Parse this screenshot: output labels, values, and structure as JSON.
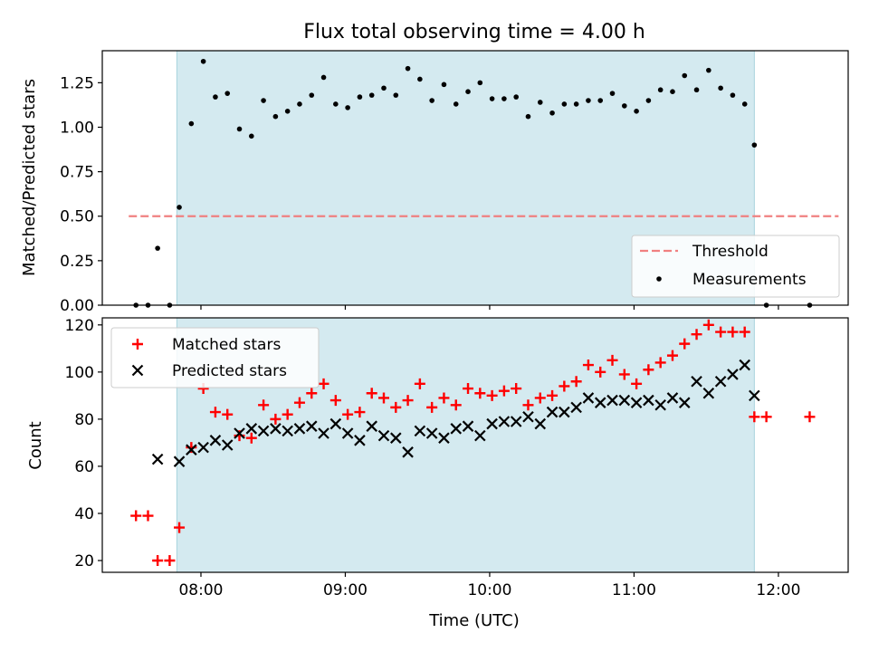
{
  "chart_data": [
    {
      "type": "scatter",
      "title": "Flux total observing time = 4.00 h",
      "ylabel": "Matched/Predicted stars",
      "xlabel": "",
      "xlim": [
        "07:19",
        "12:29"
      ],
      "ylim": [
        0,
        1.43
      ],
      "y_ticks": [
        0.0,
        0.25,
        0.5,
        0.75,
        1.0,
        1.25
      ],
      "y_tick_labels": [
        "0.00",
        "0.25",
        "0.50",
        "0.75",
        "1.00",
        "1.25"
      ],
      "x_ticks": [
        "08:00",
        "09:00",
        "10:00",
        "11:00",
        "12:00"
      ],
      "shaded_interval": [
        "07:50",
        "11:50"
      ],
      "shaded_color": "#d4eaf0",
      "legend": {
        "placement": "lower right",
        "entries": [
          "Threshold",
          "Measurements"
        ]
      },
      "threshold": {
        "name": "Threshold",
        "value": 0.5,
        "x_range": [
          "07:30",
          "12:25"
        ],
        "color": "#f08080",
        "style": "dashed"
      },
      "series": [
        {
          "name": "Measurements",
          "color": "#000000",
          "marker": "dot",
          "points": [
            [
              "07:33",
              0.0
            ],
            [
              "07:38",
              0.0
            ],
            [
              "07:42",
              0.32
            ],
            [
              "07:47",
              0.0
            ],
            [
              "07:51",
              0.55
            ],
            [
              "07:56",
              1.02
            ],
            [
              "08:01",
              1.37
            ],
            [
              "08:06",
              1.17
            ],
            [
              "08:11",
              1.19
            ],
            [
              "08:16",
              0.99
            ],
            [
              "08:21",
              0.95
            ],
            [
              "08:26",
              1.15
            ],
            [
              "08:31",
              1.06
            ],
            [
              "08:36",
              1.09
            ],
            [
              "08:41",
              1.13
            ],
            [
              "08:46",
              1.18
            ],
            [
              "08:51",
              1.28
            ],
            [
              "08:56",
              1.13
            ],
            [
              "09:01",
              1.11
            ],
            [
              "09:06",
              1.17
            ],
            [
              "09:11",
              1.18
            ],
            [
              "09:16",
              1.22
            ],
            [
              "09:21",
              1.18
            ],
            [
              "09:26",
              1.33
            ],
            [
              "09:31",
              1.27
            ],
            [
              "09:36",
              1.15
            ],
            [
              "09:41",
              1.24
            ],
            [
              "09:46",
              1.13
            ],
            [
              "09:51",
              1.2
            ],
            [
              "09:56",
              1.25
            ],
            [
              "10:01",
              1.16
            ],
            [
              "10:06",
              1.16
            ],
            [
              "10:11",
              1.17
            ],
            [
              "10:16",
              1.06
            ],
            [
              "10:21",
              1.14
            ],
            [
              "10:26",
              1.08
            ],
            [
              "10:31",
              1.13
            ],
            [
              "10:36",
              1.13
            ],
            [
              "10:41",
              1.15
            ],
            [
              "10:46",
              1.15
            ],
            [
              "10:51",
              1.19
            ],
            [
              "10:56",
              1.12
            ],
            [
              "11:01",
              1.09
            ],
            [
              "11:06",
              1.15
            ],
            [
              "11:11",
              1.21
            ],
            [
              "11:16",
              1.2
            ],
            [
              "11:21",
              1.29
            ],
            [
              "11:26",
              1.21
            ],
            [
              "11:31",
              1.32
            ],
            [
              "11:36",
              1.22
            ],
            [
              "11:41",
              1.18
            ],
            [
              "11:46",
              1.13
            ],
            [
              "11:50",
              0.9
            ],
            [
              "11:55",
              0.0
            ],
            [
              "12:13",
              0.0
            ]
          ]
        }
      ]
    },
    {
      "type": "scatter",
      "title": "",
      "ylabel": "Count",
      "xlabel": "Time (UTC)",
      "xlim": [
        "07:19",
        "12:29"
      ],
      "ylim": [
        15,
        123
      ],
      "y_ticks": [
        20,
        40,
        60,
        80,
        100,
        120
      ],
      "y_tick_labels": [
        "20",
        "40",
        "60",
        "80",
        "100",
        "120"
      ],
      "x_ticks": [
        "08:00",
        "09:00",
        "10:00",
        "11:00",
        "12:00"
      ],
      "x_tick_labels": [
        "08:00",
        "09:00",
        "10:00",
        "11:00",
        "12:00"
      ],
      "shaded_interval": [
        "07:50",
        "11:50"
      ],
      "shaded_color": "#d4eaf0",
      "legend": {
        "placement": "upper left",
        "entries": [
          "Matched stars",
          "Predicted stars"
        ]
      },
      "series": [
        {
          "name": "Matched stars",
          "color": "#ff0000",
          "marker": "plus",
          "points": [
            [
              "07:33",
              39
            ],
            [
              "07:38",
              39
            ],
            [
              "07:42",
              20
            ],
            [
              "07:47",
              20
            ],
            [
              "07:51",
              34
            ],
            [
              "07:56",
              68
            ],
            [
              "08:01",
              93
            ],
            [
              "08:06",
              83
            ],
            [
              "08:11",
              82
            ],
            [
              "08:16",
              73
            ],
            [
              "08:21",
              72
            ],
            [
              "08:26",
              86
            ],
            [
              "08:31",
              80
            ],
            [
              "08:36",
              82
            ],
            [
              "08:41",
              87
            ],
            [
              "08:46",
              91
            ],
            [
              "08:51",
              95
            ],
            [
              "08:56",
              88
            ],
            [
              "09:01",
              82
            ],
            [
              "09:06",
              83
            ],
            [
              "09:11",
              91
            ],
            [
              "09:16",
              89
            ],
            [
              "09:21",
              85
            ],
            [
              "09:26",
              88
            ],
            [
              "09:31",
              95
            ],
            [
              "09:36",
              85
            ],
            [
              "09:41",
              89
            ],
            [
              "09:46",
              86
            ],
            [
              "09:51",
              93
            ],
            [
              "09:56",
              91
            ],
            [
              "10:01",
              90
            ],
            [
              "10:06",
              92
            ],
            [
              "10:11",
              93
            ],
            [
              "10:16",
              86
            ],
            [
              "10:21",
              89
            ],
            [
              "10:26",
              90
            ],
            [
              "10:31",
              94
            ],
            [
              "10:36",
              96
            ],
            [
              "10:41",
              103
            ],
            [
              "10:46",
              100
            ],
            [
              "10:51",
              105
            ],
            [
              "10:56",
              99
            ],
            [
              "11:01",
              95
            ],
            [
              "11:06",
              101
            ],
            [
              "11:11",
              104
            ],
            [
              "11:16",
              107
            ],
            [
              "11:21",
              112
            ],
            [
              "11:26",
              116
            ],
            [
              "11:31",
              120
            ],
            [
              "11:36",
              117
            ],
            [
              "11:41",
              117
            ],
            [
              "11:46",
              117
            ],
            [
              "11:50",
              81
            ],
            [
              "11:55",
              81
            ],
            [
              "12:13",
              81
            ]
          ]
        },
        {
          "name": "Predicted stars",
          "color": "#000000",
          "marker": "x",
          "points": [
            [
              "07:42",
              63
            ],
            [
              "07:51",
              62
            ],
            [
              "07:56",
              67
            ],
            [
              "08:01",
              68
            ],
            [
              "08:06",
              71
            ],
            [
              "08:11",
              69
            ],
            [
              "08:16",
              74
            ],
            [
              "08:21",
              76
            ],
            [
              "08:26",
              75
            ],
            [
              "08:31",
              76
            ],
            [
              "08:36",
              75
            ],
            [
              "08:41",
              76
            ],
            [
              "08:46",
              77
            ],
            [
              "08:51",
              74
            ],
            [
              "08:56",
              78
            ],
            [
              "09:01",
              74
            ],
            [
              "09:06",
              71
            ],
            [
              "09:11",
              77
            ],
            [
              "09:16",
              73
            ],
            [
              "09:21",
              72
            ],
            [
              "09:26",
              66
            ],
            [
              "09:31",
              75
            ],
            [
              "09:36",
              74
            ],
            [
              "09:41",
              72
            ],
            [
              "09:46",
              76
            ],
            [
              "09:51",
              77
            ],
            [
              "09:56",
              73
            ],
            [
              "10:01",
              78
            ],
            [
              "10:06",
              79
            ],
            [
              "10:11",
              79
            ],
            [
              "10:16",
              81
            ],
            [
              "10:21",
              78
            ],
            [
              "10:26",
              83
            ],
            [
              "10:31",
              83
            ],
            [
              "10:36",
              85
            ],
            [
              "10:41",
              89
            ],
            [
              "10:46",
              87
            ],
            [
              "10:51",
              88
            ],
            [
              "10:56",
              88
            ],
            [
              "11:01",
              87
            ],
            [
              "11:06",
              88
            ],
            [
              "11:11",
              86
            ],
            [
              "11:16",
              89
            ],
            [
              "11:21",
              87
            ],
            [
              "11:26",
              96
            ],
            [
              "11:31",
              91
            ],
            [
              "11:36",
              96
            ],
            [
              "11:41",
              99
            ],
            [
              "11:46",
              103
            ],
            [
              "11:50",
              90
            ]
          ]
        }
      ]
    }
  ]
}
